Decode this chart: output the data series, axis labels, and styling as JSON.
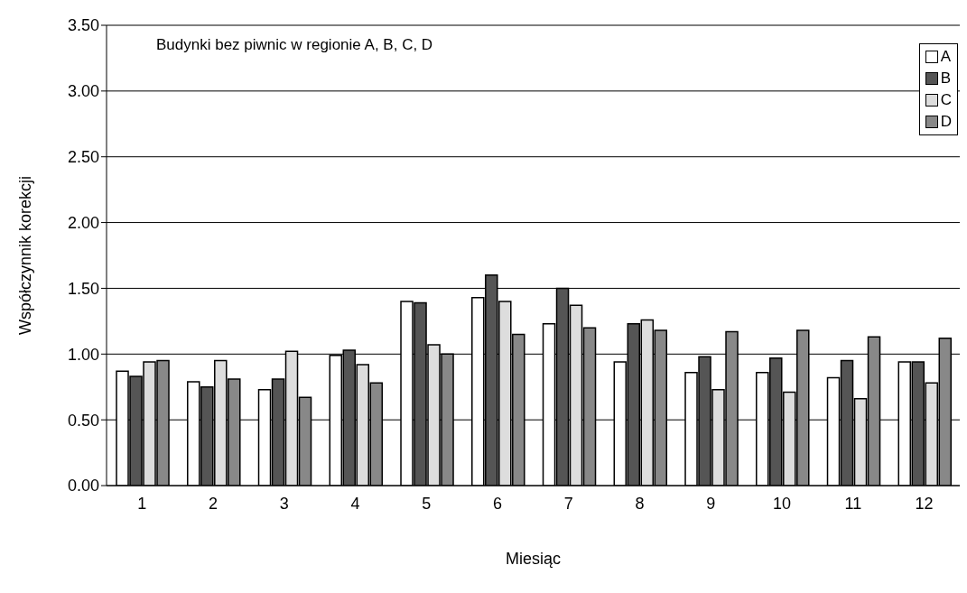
{
  "chart_data": {
    "type": "bar",
    "xlabel": "Miesiąc",
    "ylabel": "Współczynnik korekcji",
    "annotations": [
      "Budynki bez piwnic w regionie A, B, C, D"
    ],
    "categories": [
      "1",
      "2",
      "3",
      "4",
      "5",
      "6",
      "7",
      "8",
      "9",
      "10",
      "11",
      "12"
    ],
    "series": [
      {
        "name": "A",
        "color": "#ffffff",
        "values": [
          0.87,
          0.79,
          0.73,
          0.99,
          1.4,
          1.43,
          1.23,
          0.94,
          0.86,
          0.86,
          0.82,
          0.94
        ]
      },
      {
        "name": "B",
        "color": "#555555",
        "values": [
          0.83,
          0.75,
          0.81,
          1.03,
          1.39,
          1.6,
          1.5,
          1.23,
          0.98,
          0.97,
          0.95,
          0.94
        ]
      },
      {
        "name": "C",
        "color": "#dddddd",
        "values": [
          0.94,
          0.95,
          1.02,
          0.92,
          1.07,
          1.4,
          1.37,
          1.26,
          0.73,
          0.71,
          0.66,
          0.78
        ]
      },
      {
        "name": "D",
        "color": "#888888",
        "values": [
          0.95,
          0.81,
          0.67,
          0.78,
          1.0,
          1.15,
          1.2,
          1.18,
          1.17,
          1.18,
          1.13,
          1.12
        ]
      }
    ],
    "ylim": [
      0,
      3.5
    ],
    "yticks": [
      {
        "value": 0,
        "label": "0.00"
      },
      {
        "value": 0.5,
        "label": "0.50"
      },
      {
        "value": 1,
        "label": "1.00"
      },
      {
        "value": 1.5,
        "label": "1.50"
      },
      {
        "value": 2,
        "label": "2.00"
      },
      {
        "value": 2.5,
        "label": "2.50"
      },
      {
        "value": 3,
        "label": "3.00"
      },
      {
        "value": 3.5,
        "label": "3.50"
      }
    ],
    "grid": "y",
    "legend": "top right"
  }
}
